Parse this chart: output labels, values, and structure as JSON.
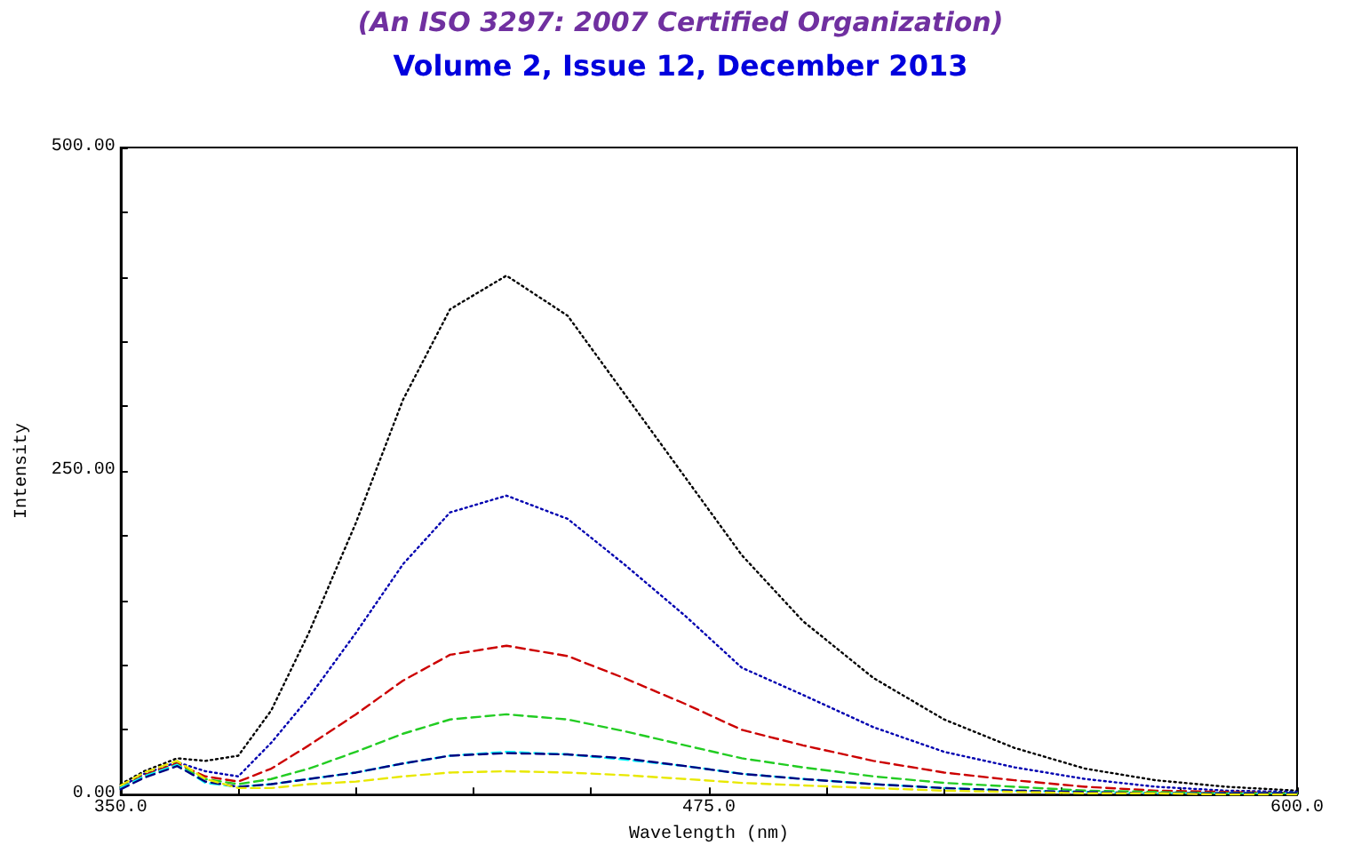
{
  "chart_data": {
    "type": "line",
    "title": "(An ISO 3297: 2007 Certified Organization)",
    "subtitle": "Volume 2, Issue 12, December 2013",
    "xlabel": "Wavelength (nm)",
    "ylabel": "Intensity",
    "x": [
      350,
      355,
      362,
      368,
      375,
      382,
      390,
      400,
      410,
      420,
      432,
      445,
      457,
      470,
      482,
      495,
      510,
      525,
      540,
      555,
      570,
      585,
      600
    ],
    "series": [
      {
        "color": "#000000",
        "line_style": "dotted",
        "values": [
          8,
          18,
          28,
          26,
          30,
          65,
          125,
          210,
          305,
          375,
          401,
          370,
          310,
          245,
          185,
          134,
          90,
          58,
          36,
          20,
          11,
          6,
          3
        ]
      },
      {
        "color": "#0000b0",
        "line_style": "dotted",
        "values": [
          6,
          16,
          25,
          18,
          14,
          40,
          75,
          125,
          178,
          218,
          231,
          213,
          178,
          138,
          98,
          77,
          52,
          33,
          21,
          12,
          6,
          3,
          2
        ]
      },
      {
        "color": "#cc0000",
        "line_style": "dashed",
        "values": [
          5,
          15,
          24,
          14,
          10,
          20,
          38,
          62,
          88,
          108,
          115,
          107,
          90,
          70,
          50,
          38,
          26,
          17,
          11,
          6,
          3,
          2,
          1
        ]
      },
      {
        "color": "#22cc22",
        "line_style": "dashed",
        "values": [
          5,
          14,
          23,
          12,
          8,
          12,
          20,
          33,
          47,
          58,
          62,
          58,
          49,
          38,
          28,
          21,
          14,
          9,
          6,
          3,
          2,
          1,
          1
        ]
      },
      {
        "color": "#00ffff",
        "line_style": "dashed",
        "values": [
          5,
          14,
          23,
          9,
          6,
          8,
          12,
          17,
          24,
          30,
          33,
          31,
          27,
          22,
          16,
          12,
          8,
          5,
          3,
          2,
          1,
          1,
          1
        ]
      },
      {
        "color": "#000080",
        "line_style": "dashed",
        "values": [
          4,
          13,
          22,
          10,
          6,
          8,
          12,
          17,
          24,
          30,
          32,
          31,
          28,
          22,
          16,
          12,
          8,
          5,
          3,
          2,
          1,
          1,
          1
        ]
      },
      {
        "color": "#e8e800",
        "line_style": "dashed",
        "values": [
          7,
          17,
          26,
          12,
          5,
          5,
          8,
          10,
          14,
          17,
          18,
          17,
          15,
          12,
          9,
          7,
          5,
          3,
          2,
          1,
          1,
          0,
          0
        ]
      }
    ],
    "xlim": [
      350,
      600
    ],
    "xticks": [
      {
        "value": 350,
        "label": "350.0"
      },
      {
        "value": 375,
        "label": null
      },
      {
        "value": 400,
        "label": null
      },
      {
        "value": 425,
        "label": null
      },
      {
        "value": 450,
        "label": null
      },
      {
        "value": 475,
        "label": "475.0"
      },
      {
        "value": 500,
        "label": null
      },
      {
        "value": 525,
        "label": null
      },
      {
        "value": 550,
        "label": null
      },
      {
        "value": 575,
        "label": null
      },
      {
        "value": 600,
        "label": "600.0"
      }
    ],
    "ylim": [
      0,
      500
    ],
    "yticks": [
      {
        "value": 0,
        "label": "0.00"
      },
      {
        "value": 50,
        "label": null
      },
      {
        "value": 100,
        "label": null
      },
      {
        "value": 150,
        "label": null
      },
      {
        "value": 200,
        "label": null
      },
      {
        "value": 250,
        "label": "250.00"
      },
      {
        "value": 300,
        "label": null
      },
      {
        "value": 350,
        "label": null
      },
      {
        "value": 400,
        "label": null
      },
      {
        "value": 450,
        "label": null
      },
      {
        "value": 500,
        "label": "500.00"
      }
    ],
    "grid": false,
    "marker": "none"
  }
}
